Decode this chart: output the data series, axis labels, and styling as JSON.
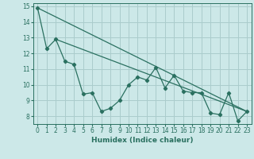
{
  "xlabel": "Humidex (Indice chaleur)",
  "xlim": [
    -0.5,
    23.5
  ],
  "ylim": [
    7.5,
    15.2
  ],
  "yticks": [
    8,
    9,
    10,
    11,
    12,
    13,
    14,
    15
  ],
  "xticks": [
    0,
    1,
    2,
    3,
    4,
    5,
    6,
    7,
    8,
    9,
    10,
    11,
    12,
    13,
    14,
    15,
    16,
    17,
    18,
    19,
    20,
    21,
    22,
    23
  ],
  "bg_color": "#cce8e8",
  "grid_color": "#aacccc",
  "line_color": "#2a7060",
  "jagged": {
    "x": [
      0,
      1,
      2,
      3,
      4,
      5,
      6,
      7,
      8,
      9,
      10,
      11,
      12,
      13,
      14,
      15,
      16,
      17,
      18,
      19,
      20,
      21,
      22,
      23
    ],
    "y": [
      14.9,
      12.3,
      12.9,
      11.5,
      11.3,
      9.4,
      9.5,
      8.3,
      8.5,
      9.0,
      10.0,
      10.5,
      10.3,
      11.1,
      9.8,
      10.6,
      9.6,
      9.5,
      9.5,
      8.2,
      8.1,
      9.5,
      7.7,
      8.3
    ]
  },
  "line1": {
    "x": [
      0,
      23
    ],
    "y": [
      14.9,
      8.3
    ]
  },
  "line2": {
    "x": [
      2,
      23
    ],
    "y": [
      12.9,
      8.3
    ]
  }
}
